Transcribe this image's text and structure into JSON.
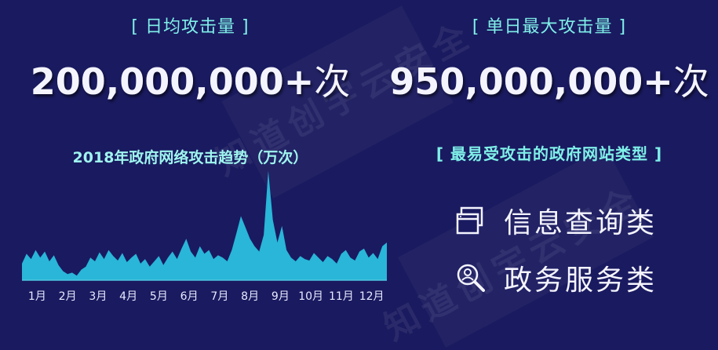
{
  "stats": {
    "daily_avg_label": "[ 日均攻击量 ]",
    "daily_avg_number": "200,000,000+",
    "daily_avg_unit": "次",
    "max_label": "[ 单日最大攻击量 ]",
    "max_number": "950,000,000+",
    "max_unit": "次"
  },
  "types": {
    "title": "[ 最易受攻击的政府网站类型 ]",
    "items": [
      {
        "label": "信息查询类",
        "icon": "windows-icon"
      },
      {
        "label": "政务服务类",
        "icon": "search-person-icon"
      }
    ]
  },
  "watermark": "知道创宇云安全",
  "colors": {
    "background": "#1a1a60",
    "accent": "#7ff0e8",
    "area_fill": "#29b6d8",
    "text": "#f4f4ff"
  },
  "chart_data": {
    "type": "area",
    "title": "2018年政府网络攻击趋势（万次）",
    "categories": [
      "1月",
      "2月",
      "3月",
      "4月",
      "5月",
      "6月",
      "7月",
      "8月",
      "9月",
      "10月",
      "11月",
      "12月"
    ],
    "x": [
      0,
      0.15,
      0.3,
      0.45,
      0.6,
      0.75,
      0.9,
      1.05,
      1.2,
      1.35,
      1.5,
      1.65,
      1.8,
      1.95,
      2.1,
      2.25,
      2.4,
      2.55,
      2.7,
      2.85,
      3,
      3.15,
      3.3,
      3.45,
      3.6,
      3.75,
      3.9,
      4.05,
      4.2,
      4.35,
      4.5,
      4.65,
      4.8,
      4.95,
      5.1,
      5.25,
      5.4,
      5.55,
      5.7,
      5.85,
      6,
      6.15,
      6.3,
      6.45,
      6.6,
      6.75,
      6.9,
      7.05,
      7.2,
      7.35,
      7.5,
      7.65,
      7.8,
      7.95,
      8.1,
      8.25,
      8.4,
      8.55,
      8.7,
      8.85,
      9,
      9.15,
      9.3,
      9.45,
      9.6,
      9.75,
      9.9,
      10.05,
      10.2,
      10.35,
      10.5,
      10.65,
      10.8,
      10.95,
      11.1,
      11.25,
      11.4,
      11.55,
      11.7,
      11.85,
      12
    ],
    "series": [
      {
        "values": [
          22,
          35,
          28,
          40,
          30,
          38,
          25,
          33,
          20,
          12,
          8,
          10,
          6,
          14,
          18,
          30,
          25,
          37,
          28,
          40,
          32,
          26,
          36,
          24,
          30,
          35,
          22,
          28,
          18,
          25,
          32,
          20,
          30,
          38,
          28,
          42,
          55,
          38,
          30,
          45,
          35,
          40,
          28,
          33,
          30,
          25,
          40,
          62,
          85,
          70,
          55,
          45,
          38,
          60,
          145,
          80,
          50,
          72,
          40,
          30,
          25,
          32,
          28,
          26,
          36,
          30,
          24,
          32,
          28,
          22,
          35,
          40,
          30,
          26,
          38,
          42,
          30,
          36,
          28,
          45,
          50
        ],
        "max_spike_note": ""
      }
    ],
    "ylabel": "",
    "xlabel": "",
    "ylim": [
      0,
      150
    ],
    "grid": false,
    "legend": "none"
  }
}
